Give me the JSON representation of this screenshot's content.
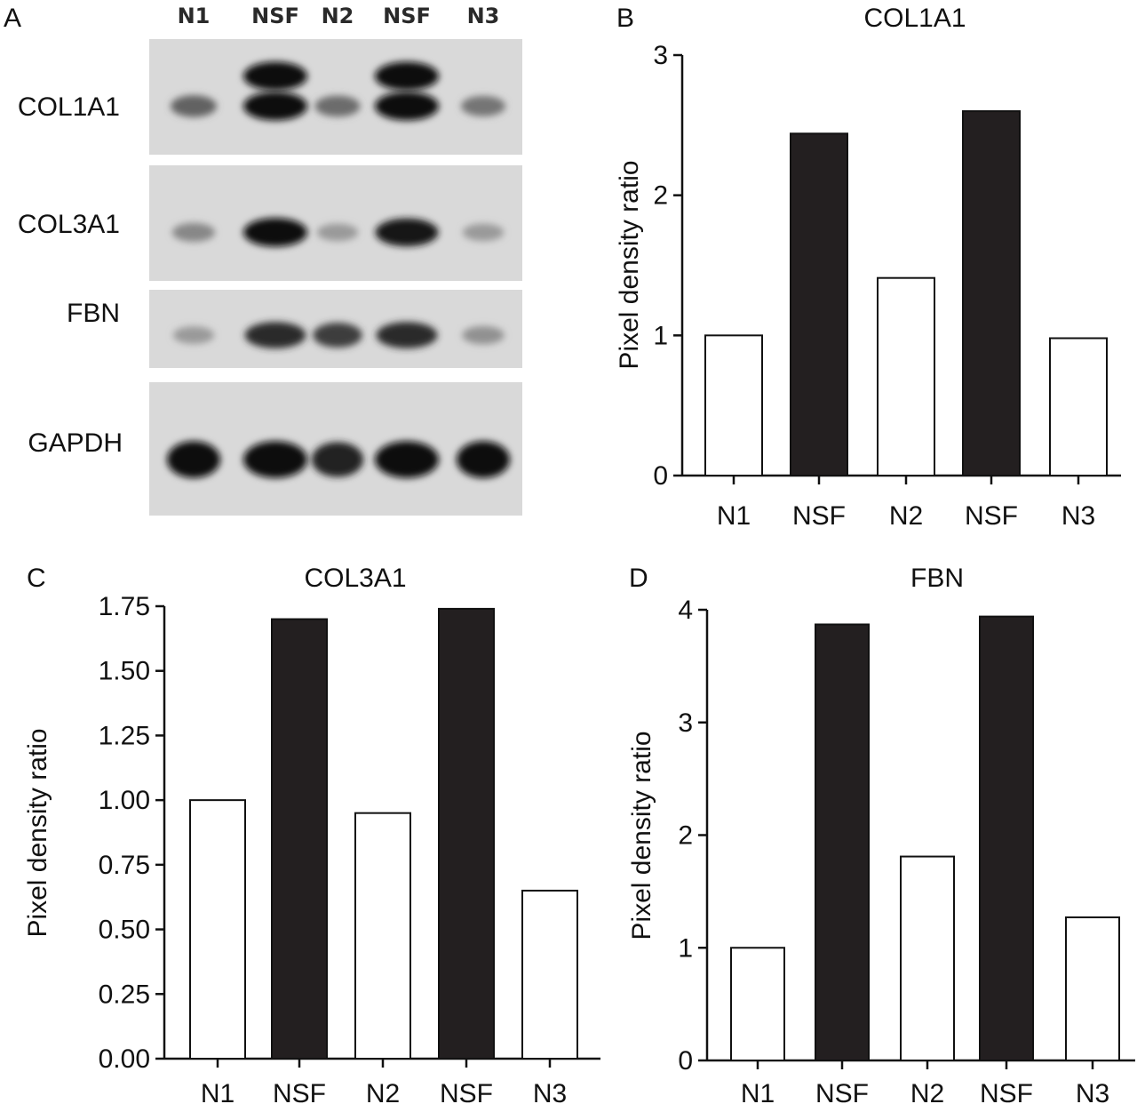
{
  "blot": {
    "panel": "A",
    "lanes": [
      "N1",
      "NSF",
      "N2",
      "NSF",
      "N3"
    ],
    "rows": [
      {
        "label": "COL1A1",
        "bands": [
          0.55,
          1.0,
          0.5,
          1.0,
          0.45
        ],
        "double": true
      },
      {
        "label": "COL3A1",
        "bands": [
          0.35,
          1.0,
          0.25,
          0.95,
          0.25
        ],
        "double": false
      },
      {
        "label": "FBN",
        "bands": [
          0.25,
          0.85,
          0.75,
          0.85,
          0.3
        ],
        "double": false
      },
      {
        "label": "GAPDH",
        "bands": [
          1.0,
          1.0,
          0.9,
          1.0,
          1.0
        ],
        "double": false
      }
    ]
  },
  "chart_data": [
    {
      "panel": "B",
      "type": "bar",
      "title": "COL1A1",
      "categories": [
        "N1",
        "NSF",
        "N2",
        "NSF",
        "N3"
      ],
      "values": [
        1.0,
        2.44,
        1.41,
        2.6,
        0.98
      ],
      "fills": [
        "#ffffff",
        "#231f20",
        "#ffffff",
        "#231f20",
        "#ffffff"
      ],
      "ylabel": "Pixel density ratio",
      "xlabel": "",
      "ylim": [
        0,
        3
      ],
      "yticks": [
        "0",
        "1",
        "2",
        "3"
      ],
      "ytick_values": [
        0,
        1,
        2,
        3
      ]
    },
    {
      "panel": "C",
      "type": "bar",
      "title": "COL3A1",
      "categories": [
        "N1",
        "NSF",
        "N2",
        "NSF",
        "N3"
      ],
      "values": [
        1.0,
        1.7,
        0.95,
        1.74,
        0.65
      ],
      "fills": [
        "#ffffff",
        "#231f20",
        "#ffffff",
        "#231f20",
        "#ffffff"
      ],
      "ylabel": "Pixel density ratio",
      "xlabel": "",
      "ylim": [
        0,
        1.75
      ],
      "yticks": [
        "0.00",
        "0.25",
        "0.50",
        "0.75",
        "1.00",
        "1.25",
        "1.50",
        "1.75"
      ],
      "ytick_values": [
        0,
        0.25,
        0.5,
        0.75,
        1.0,
        1.25,
        1.5,
        1.75
      ]
    },
    {
      "panel": "D",
      "type": "bar",
      "title": "FBN",
      "categories": [
        "N1",
        "NSF",
        "N2",
        "NSF",
        "N3"
      ],
      "values": [
        1.0,
        3.87,
        1.81,
        3.94,
        1.27
      ],
      "fills": [
        "#ffffff",
        "#231f20",
        "#ffffff",
        "#231f20",
        "#ffffff"
      ],
      "ylabel": "Pixel density ratio",
      "xlabel": "",
      "ylim": [
        0,
        4
      ],
      "yticks": [
        "0",
        "1",
        "2",
        "3",
        "4"
      ],
      "ytick_values": [
        0,
        1,
        2,
        3,
        4
      ]
    }
  ]
}
